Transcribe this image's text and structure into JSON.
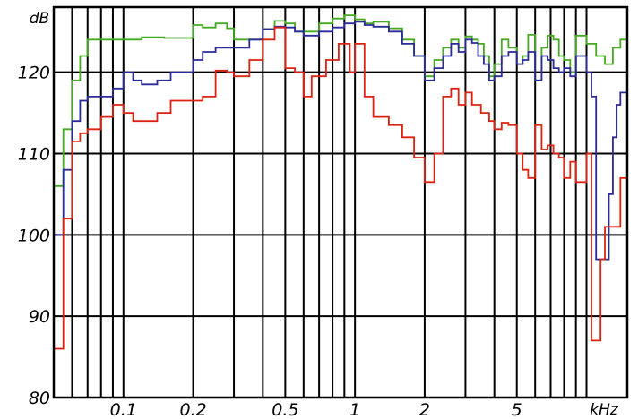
{
  "chart_data": {
    "type": "line",
    "title": "",
    "xlabel": "kHz",
    "ylabel": "dB",
    "x_scale": "log",
    "xlim": [
      0.05,
      15
    ],
    "ylim": [
      80,
      128
    ],
    "grid": true,
    "y_ticks": [
      {
        "value": 80,
        "label": "80"
      },
      {
        "value": 90,
        "label": "90"
      },
      {
        "value": 100,
        "label": "100"
      },
      {
        "value": 110,
        "label": "110"
      },
      {
        "value": 120,
        "label": "120"
      }
    ],
    "x_ticks": [
      {
        "value": 0.1,
        "label": "0.1"
      },
      {
        "value": 0.2,
        "label": "0.2"
      },
      {
        "value": 0.5,
        "label": "0.5"
      },
      {
        "value": 1,
        "label": "1"
      },
      {
        "value": 2,
        "label": "2"
      },
      {
        "value": 5,
        "label": "5"
      }
    ],
    "x_gridlines": [
      0.06,
      0.07,
      0.08,
      0.09,
      0.1,
      0.2,
      0.3,
      0.4,
      0.5,
      0.6,
      0.7,
      0.8,
      0.9,
      1,
      2,
      3,
      4,
      5,
      6,
      7,
      8,
      9,
      10
    ],
    "y_gridlines": [
      90,
      100,
      110,
      120
    ],
    "series": [
      {
        "color": "#44aa22",
        "points": [
          [
            0.05,
            106
          ],
          [
            0.055,
            113
          ],
          [
            0.06,
            119
          ],
          [
            0.065,
            122
          ],
          [
            0.07,
            124
          ],
          [
            0.08,
            124
          ],
          [
            0.09,
            124
          ],
          [
            0.1,
            124
          ],
          [
            0.12,
            124.3
          ],
          [
            0.15,
            124.2
          ],
          [
            0.2,
            125.8
          ],
          [
            0.22,
            125.5
          ],
          [
            0.25,
            126
          ],
          [
            0.28,
            125.4
          ],
          [
            0.3,
            124
          ],
          [
            0.35,
            124
          ],
          [
            0.4,
            125.3
          ],
          [
            0.45,
            126.3
          ],
          [
            0.5,
            126
          ],
          [
            0.55,
            125
          ],
          [
            0.6,
            125
          ],
          [
            0.7,
            126
          ],
          [
            0.8,
            126.6
          ],
          [
            0.9,
            127
          ],
          [
            1.0,
            126.5
          ],
          [
            1.1,
            126
          ],
          [
            1.2,
            126.2
          ],
          [
            1.4,
            125.4
          ],
          [
            1.6,
            124
          ],
          [
            1.8,
            122
          ],
          [
            2.0,
            119.5
          ],
          [
            2.2,
            121.5
          ],
          [
            2.4,
            123
          ],
          [
            2.6,
            124
          ],
          [
            2.8,
            123
          ],
          [
            3.0,
            124.4
          ],
          [
            3.2,
            124
          ],
          [
            3.4,
            123.5
          ],
          [
            3.6,
            122
          ],
          [
            3.8,
            119.5
          ],
          [
            4.0,
            121
          ],
          [
            4.3,
            124
          ],
          [
            4.6,
            123
          ],
          [
            5.0,
            121
          ],
          [
            5.3,
            122
          ],
          [
            5.6,
            124.6
          ],
          [
            6.0,
            119
          ],
          [
            6.4,
            123
          ],
          [
            6.8,
            124.5
          ],
          [
            7.2,
            124
          ],
          [
            7.6,
            122
          ],
          [
            8.0,
            121.5
          ],
          [
            8.5,
            120
          ],
          [
            9.0,
            124.5
          ],
          [
            10,
            123.5
          ],
          [
            11,
            122
          ],
          [
            12,
            121
          ],
          [
            13,
            123
          ],
          [
            14,
            124
          ],
          [
            15,
            127.5
          ]
        ]
      },
      {
        "color": "#2a2a9a",
        "points": [
          [
            0.05,
            100
          ],
          [
            0.055,
            108
          ],
          [
            0.06,
            114
          ],
          [
            0.065,
            116.5
          ],
          [
            0.07,
            117
          ],
          [
            0.08,
            117
          ],
          [
            0.09,
            118
          ],
          [
            0.1,
            120
          ],
          [
            0.11,
            119
          ],
          [
            0.12,
            118.5
          ],
          [
            0.14,
            119
          ],
          [
            0.16,
            120
          ],
          [
            0.2,
            121.5
          ],
          [
            0.22,
            122.5
          ],
          [
            0.25,
            123
          ],
          [
            0.3,
            123
          ],
          [
            0.35,
            124
          ],
          [
            0.4,
            125.3
          ],
          [
            0.45,
            125.6
          ],
          [
            0.5,
            125.5
          ],
          [
            0.55,
            125
          ],
          [
            0.6,
            124.5
          ],
          [
            0.7,
            125
          ],
          [
            0.8,
            125.5
          ],
          [
            0.9,
            126
          ],
          [
            1.0,
            126.2
          ],
          [
            1.1,
            125.8
          ],
          [
            1.2,
            125.6
          ],
          [
            1.4,
            125
          ],
          [
            1.6,
            123.5
          ],
          [
            1.8,
            122
          ],
          [
            2.0,
            119
          ],
          [
            2.2,
            120.5
          ],
          [
            2.4,
            122
          ],
          [
            2.6,
            123.5
          ],
          [
            2.8,
            122.5
          ],
          [
            3.0,
            124
          ],
          [
            3.2,
            123.6
          ],
          [
            3.4,
            122
          ],
          [
            3.6,
            121
          ],
          [
            3.8,
            119
          ],
          [
            4.0,
            119.5
          ],
          [
            4.3,
            122
          ],
          [
            4.6,
            122.5
          ],
          [
            5.0,
            121
          ],
          [
            5.3,
            121.5
          ],
          [
            5.6,
            122.5
          ],
          [
            6.0,
            119
          ],
          [
            6.4,
            122
          ],
          [
            6.8,
            121.5
          ],
          [
            7.2,
            120.5
          ],
          [
            7.6,
            120
          ],
          [
            8.0,
            120.5
          ],
          [
            8.5,
            119.5
          ],
          [
            9.0,
            122
          ],
          [
            10,
            120
          ],
          [
            10.5,
            117
          ],
          [
            11,
            97
          ],
          [
            12,
            97
          ],
          [
            12.5,
            105
          ],
          [
            13,
            112
          ],
          [
            13.5,
            116
          ],
          [
            14,
            117.5
          ],
          [
            15,
            117.5
          ]
        ]
      },
      {
        "color": "#dd2211",
        "points": [
          [
            0.05,
            86
          ],
          [
            0.055,
            102
          ],
          [
            0.06,
            111.5
          ],
          [
            0.065,
            112.5
          ],
          [
            0.07,
            113
          ],
          [
            0.08,
            114.5
          ],
          [
            0.09,
            116
          ],
          [
            0.1,
            115
          ],
          [
            0.11,
            114
          ],
          [
            0.12,
            114
          ],
          [
            0.14,
            115
          ],
          [
            0.16,
            116.5
          ],
          [
            0.18,
            116.5
          ],
          [
            0.2,
            116.5
          ],
          [
            0.22,
            117
          ],
          [
            0.25,
            120.2
          ],
          [
            0.28,
            120
          ],
          [
            0.3,
            119.5
          ],
          [
            0.35,
            121.5
          ],
          [
            0.4,
            124
          ],
          [
            0.45,
            125.5
          ],
          [
            0.5,
            120.5
          ],
          [
            0.55,
            120
          ],
          [
            0.6,
            117
          ],
          [
            0.65,
            119.5
          ],
          [
            0.7,
            119.5
          ],
          [
            0.75,
            121.5
          ],
          [
            0.8,
            121.5
          ],
          [
            0.85,
            123.5
          ],
          [
            0.9,
            123.5
          ],
          [
            0.95,
            120
          ],
          [
            1.0,
            123.5
          ],
          [
            1.1,
            117
          ],
          [
            1.2,
            114.5
          ],
          [
            1.4,
            113.5
          ],
          [
            1.6,
            112
          ],
          [
            1.8,
            109.5
          ],
          [
            2.0,
            106.5
          ],
          [
            2.2,
            110
          ],
          [
            2.4,
            117
          ],
          [
            2.6,
            118
          ],
          [
            2.8,
            116
          ],
          [
            3.0,
            117.5
          ],
          [
            3.2,
            116
          ],
          [
            3.5,
            115
          ],
          [
            3.8,
            114
          ],
          [
            4.0,
            113
          ],
          [
            4.3,
            113.8
          ],
          [
            4.6,
            113.5
          ],
          [
            5.0,
            110
          ],
          [
            5.3,
            108
          ],
          [
            5.6,
            107
          ],
          [
            6.0,
            113.5
          ],
          [
            6.4,
            110.5
          ],
          [
            6.8,
            111
          ],
          [
            7.2,
            110
          ],
          [
            7.6,
            109.5
          ],
          [
            8.0,
            107
          ],
          [
            8.5,
            109
          ],
          [
            9.0,
            106.5
          ],
          [
            10,
            110
          ],
          [
            10.5,
            87
          ],
          [
            11,
            87
          ],
          [
            11.5,
            97
          ],
          [
            12,
            101
          ],
          [
            13,
            101
          ],
          [
            14,
            107
          ],
          [
            15,
            107
          ]
        ]
      }
    ]
  }
}
